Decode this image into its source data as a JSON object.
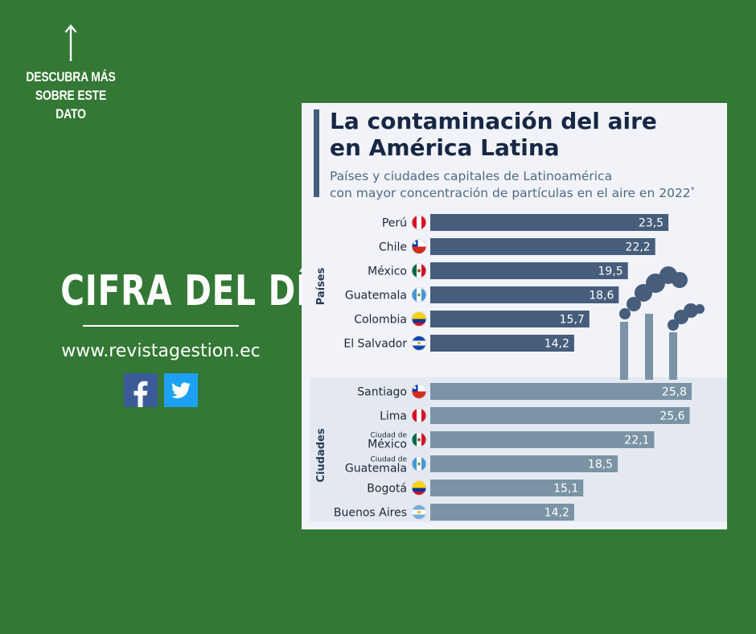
{
  "promo": {
    "discover_text": "DESCUBRA MÁS\nSOBRE ESTE\nDATO",
    "headline": "CIFRA DEL DÍA",
    "website": "www.revistagestion.ec"
  },
  "social": {
    "facebook": {
      "icon": "facebook-icon",
      "color": "#3b5a98"
    },
    "twitter": {
      "icon": "twitter-icon",
      "color": "#1da1f2"
    }
  },
  "colors": {
    "background": "#337834",
    "country_bar": "#465d7b",
    "city_bar": "#7a94a5"
  },
  "chart_data": {
    "type": "bar",
    "orientation": "horizontal",
    "title_line1": "La contaminación del aire",
    "title_line2": "en América Latina",
    "subtitle_line1": "Países y ciudades capitales de Latinoamérica",
    "subtitle_line2": "con mayor concentración de partículas en el aire en 2022",
    "subtitle_note_mark": "*",
    "xlim": [
      0,
      27
    ],
    "groups": [
      {
        "name": "Países",
        "series": [
          {
            "label": "Perú",
            "value": 23.5,
            "display": "23,5",
            "flag": "peru"
          },
          {
            "label": "Chile",
            "value": 22.2,
            "display": "22,2",
            "flag": "chile"
          },
          {
            "label": "México",
            "value": 19.5,
            "display": "19,5",
            "flag": "mexico"
          },
          {
            "label": "Guatemala",
            "value": 18.6,
            "display": "18,6",
            "flag": "guatemala"
          },
          {
            "label": "Colombia",
            "value": 15.7,
            "display": "15,7",
            "flag": "colombia"
          },
          {
            "label": "El Salvador",
            "value": 14.2,
            "display": "14,2",
            "flag": "el-salvador"
          }
        ]
      },
      {
        "name": "Ciudades",
        "series": [
          {
            "label": "Santiago",
            "value": 25.8,
            "display": "25,8",
            "flag": "chile"
          },
          {
            "label": "Lima",
            "value": 25.6,
            "display": "25,6",
            "flag": "peru"
          },
          {
            "prefix": "Ciudad de",
            "label": "México",
            "value": 22.1,
            "display": "22,1",
            "flag": "mexico"
          },
          {
            "prefix": "Ciudad de",
            "label": "Guatemala",
            "value": 18.5,
            "display": "18,5",
            "flag": "guatemala"
          },
          {
            "label": "Bogotá",
            "value": 15.1,
            "display": "15,1",
            "flag": "colombia"
          },
          {
            "label": "Buenos Aires",
            "value": 14.2,
            "display": "14,2",
            "flag": "argentina"
          }
        ]
      }
    ]
  }
}
